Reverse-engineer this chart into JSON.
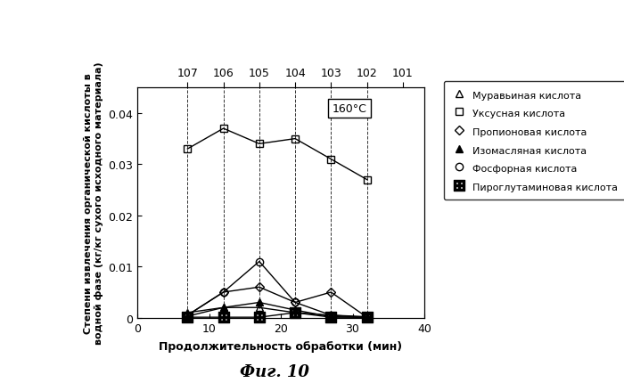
{
  "title_fig": "Фиг. 10",
  "temp_label": "160°C",
  "xlabel": "Продолжительность обработки (мин)",
  "ylabel": "Степени извлечения органической кислоты в\nводной фазе (кг/кг сухого исходного материала)",
  "xlim": [
    0,
    40
  ],
  "ylim": [
    0,
    0.045
  ],
  "yticks": [
    0,
    0.01,
    0.02,
    0.03,
    0.04
  ],
  "xticks": [
    0,
    10,
    20,
    30,
    40
  ],
  "top_axis_ticks": [
    7,
    12,
    17,
    22,
    27,
    32,
    37
  ],
  "top_axis_labels": [
    "107",
    "106",
    "105",
    "104",
    "103",
    "102",
    "101"
  ],
  "dashed_lines_x": [
    7,
    12,
    17,
    22,
    27,
    32
  ],
  "acetic_x": [
    7,
    12,
    17,
    22,
    27,
    32
  ],
  "acetic_y": [
    0.033,
    0.037,
    0.034,
    0.035,
    0.031,
    0.027
  ],
  "formic_x": [
    7,
    12,
    17,
    22,
    27,
    32
  ],
  "formic_y": [
    0.001,
    0.002,
    0.002,
    0.001,
    0.0005,
    0.0002
  ],
  "propionic_x": [
    7,
    12,
    17,
    22,
    27,
    32
  ],
  "propionic_y": [
    0.0005,
    0.005,
    0.006,
    0.003,
    0.005,
    0.0001
  ],
  "isobutyric_x": [
    7,
    12,
    17,
    22,
    27,
    32
  ],
  "isobutyric_y": [
    0.0003,
    0.002,
    0.003,
    0.0015,
    0.0002,
    5e-05
  ],
  "phosphoric_x": [
    7,
    12,
    17,
    22,
    27,
    32
  ],
  "phosphoric_y": [
    0.0005,
    0.005,
    0.011,
    0.003,
    0.0005,
    5e-05
  ],
  "pyroglutamic_x": [
    7,
    12,
    17,
    22,
    27,
    32
  ],
  "pyroglutamic_y": [
    0.0001,
    0.0001,
    0.0001,
    0.001,
    0.0001,
    0.0001
  ],
  "legend_labels": [
    "Муравьиная кислота",
    "Уксусная кислота",
    "Пропионовая кислота",
    "Изомасляная кислота",
    "Фосфорная кислота",
    "Пироглутаминовая кислота"
  ]
}
